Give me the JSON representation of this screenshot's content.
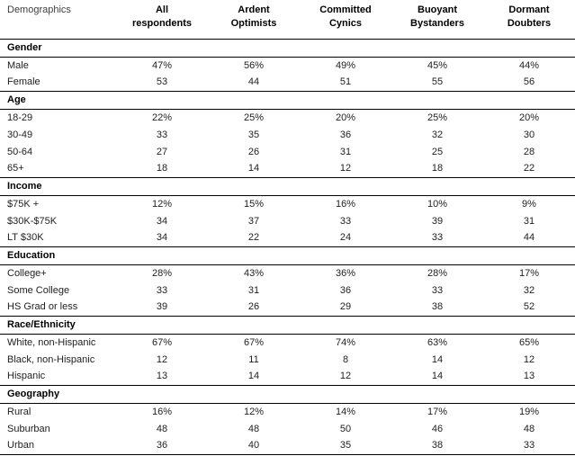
{
  "colors": {
    "rule": "#000000",
    "text": "#222222",
    "bold-text": "#000000",
    "muted": "#3f3f3f",
    "bg": "#ffffff"
  },
  "chart_data": {
    "type": "table",
    "row_header": "Demographics",
    "columns": [
      {
        "label": "All respondents",
        "line1": "All",
        "line2": "respondents"
      },
      {
        "label": "Ardent Optimists",
        "line1": "Ardent",
        "line2": "Optimists"
      },
      {
        "label": "Committed Cynics",
        "line1": "Committed",
        "line2": "Cynics"
      },
      {
        "label": "Buoyant Bystanders",
        "line1": "Buoyant",
        "line2": "Bystanders"
      },
      {
        "label": "Dormant Doubters",
        "line1": "Dormant",
        "line2": "Doubters"
      }
    ],
    "sections": [
      {
        "title": "Gender",
        "rows": [
          {
            "label": "Male",
            "values": [
              "47%",
              "56%",
              "49%",
              "45%",
              "44%"
            ]
          },
          {
            "label": "Female",
            "values": [
              "53",
              "44",
              "51",
              "55",
              "56"
            ]
          }
        ]
      },
      {
        "title": "Age",
        "rows": [
          {
            "label": "18-29",
            "values": [
              "22%",
              "25%",
              "20%",
              "25%",
              "20%"
            ]
          },
          {
            "label": "30-49",
            "values": [
              "33",
              "35",
              "36",
              "32",
              "30"
            ]
          },
          {
            "label": "50-64",
            "values": [
              "27",
              "26",
              "31",
              "25",
              "28"
            ]
          },
          {
            "label": "65+",
            "values": [
              "18",
              "14",
              "12",
              "18",
              "22"
            ]
          }
        ]
      },
      {
        "title": "Income",
        "rows": [
          {
            "label": "$75K +",
            "values": [
              "12%",
              "15%",
              "16%",
              "10%",
              "9%"
            ]
          },
          {
            "label": "$30K-$75K",
            "values": [
              "34",
              "37",
              "33",
              "39",
              "31"
            ]
          },
          {
            "label": "LT $30K",
            "values": [
              "34",
              "22",
              "24",
              "33",
              "44"
            ]
          }
        ]
      },
      {
        "title": "Education",
        "rows": [
          {
            "label": "College+",
            "values": [
              "28%",
              "43%",
              "36%",
              "28%",
              "17%"
            ]
          },
          {
            "label": "Some College",
            "values": [
              "33",
              "31",
              "36",
              "33",
              "32"
            ]
          },
          {
            "label": "HS Grad or less",
            "values": [
              "39",
              "26",
              "29",
              "38",
              "52"
            ]
          }
        ]
      },
      {
        "title": "Race/Ethnicity",
        "rows": [
          {
            "label": "White, non-Hispanic",
            "values": [
              "67%",
              "67%",
              "74%",
              "63%",
              "65%"
            ]
          },
          {
            "label": "Black, non-Hispanic",
            "values": [
              "12",
              "11",
              "8",
              "14",
              "12"
            ]
          },
          {
            "label": "Hispanic",
            "values": [
              "13",
              "14",
              "12",
              "14",
              "13"
            ]
          }
        ]
      },
      {
        "title": "Geography",
        "rows": [
          {
            "label": "Rural",
            "values": [
              "16%",
              "12%",
              "14%",
              "17%",
              "19%"
            ]
          },
          {
            "label": "Suburban",
            "values": [
              "48",
              "48",
              "50",
              "46",
              "48"
            ]
          },
          {
            "label": "Urban",
            "values": [
              "36",
              "40",
              "35",
              "38",
              "33"
            ]
          }
        ]
      }
    ]
  }
}
